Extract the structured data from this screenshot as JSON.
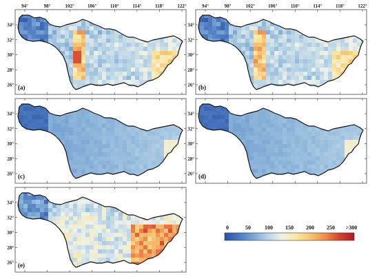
{
  "panels": [
    {
      "label": "(a)",
      "variant": "a",
      "lon_labels_top": true
    },
    {
      "label": "(b)",
      "variant": "b",
      "lon_labels_top": true
    },
    {
      "label": "(c)",
      "variant": "c",
      "lon_labels_top": false
    },
    {
      "label": "(d)",
      "variant": "d",
      "lon_labels_top": false
    },
    {
      "label": "(e)",
      "variant": "e",
      "lon_labels_top": false
    }
  ],
  "longitude_ticks": [
    "94°",
    "98°",
    "102°",
    "106°",
    "110°",
    "114°",
    "118°",
    "122°"
  ],
  "latitude_ticks": [
    "34°",
    "32°",
    "30°",
    "28°",
    "26°"
  ],
  "colorbar": {
    "ticks": [
      "0",
      "50",
      "100",
      "150",
      "200",
      "250",
      ">300"
    ],
    "range": [
      0,
      300
    ],
    "colors": [
      "#2e4fa2",
      "#4a79c0",
      "#7aa6d4",
      "#b6d3e6",
      "#eef2e9",
      "#fbe7a1",
      "#f7c272",
      "#ee8a4c",
      "#d8402c",
      "#b5152a"
    ]
  }
}
